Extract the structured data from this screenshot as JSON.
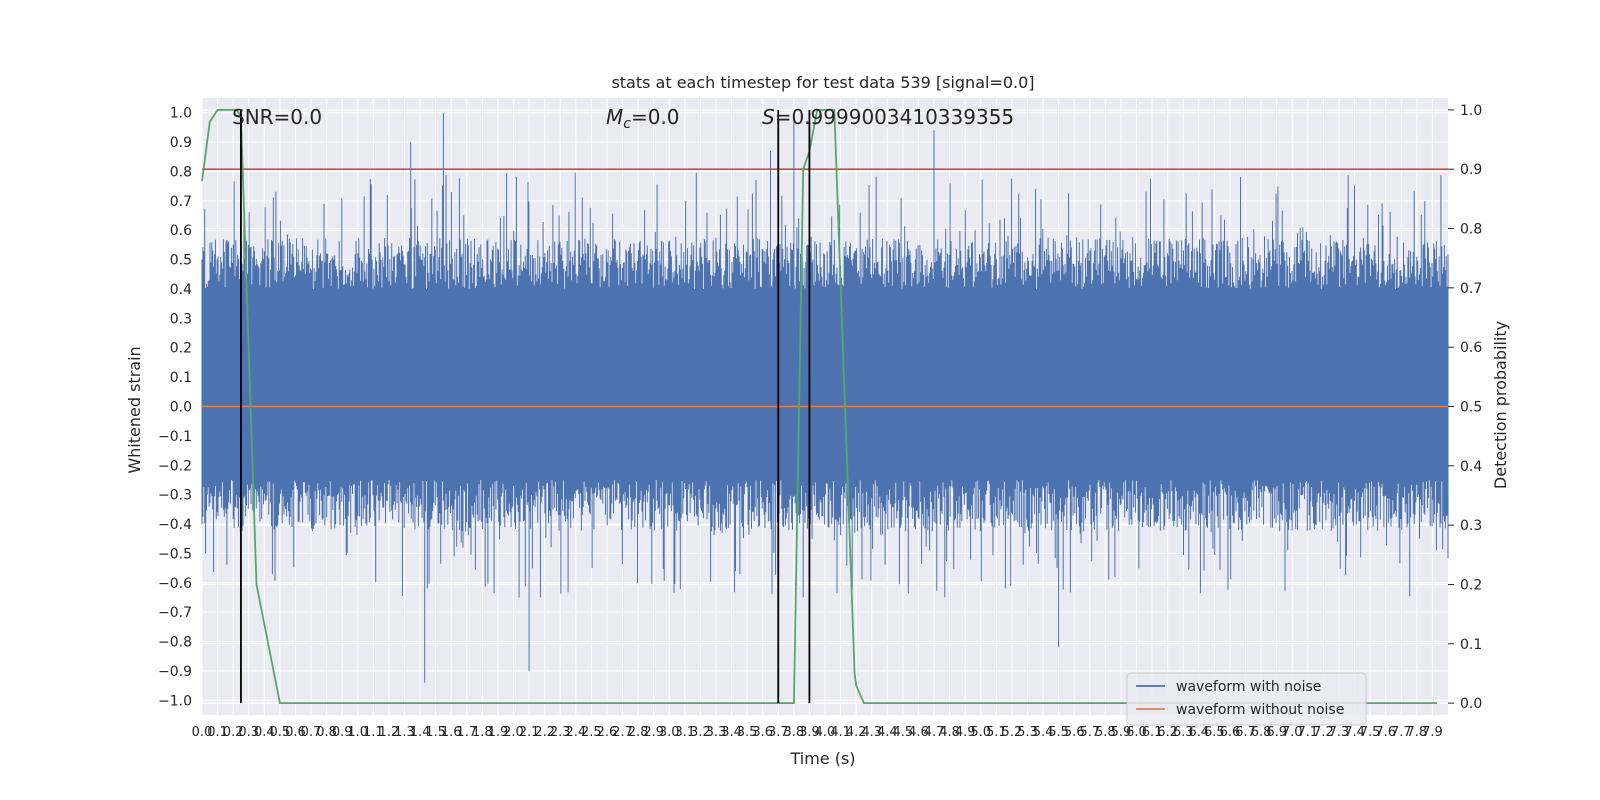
{
  "chart_data": {
    "type": "line",
    "title": "stats at each timestep for test data 539 [signal=0.0]",
    "xlabel": "Time (s)",
    "ylabel": "Whitened strain",
    "y2label": "Detection probability",
    "xlim": [
      0.0,
      8.0
    ],
    "ylim": [
      -1.05,
      1.05
    ],
    "y2lim": [
      -0.02,
      1.02
    ],
    "xticks": [
      0.0,
      0.1,
      0.2,
      0.3,
      0.4,
      0.5,
      0.6,
      0.7,
      0.8,
      0.9,
      1.0,
      1.1,
      1.2,
      1.3,
      1.4,
      1.5,
      1.6,
      1.7,
      1.8,
      1.9,
      2.0,
      2.1,
      2.2,
      2.3,
      2.4,
      2.5,
      2.6,
      2.7,
      2.8,
      2.9,
      3.0,
      3.1,
      3.2,
      3.3,
      3.4,
      3.5,
      3.6,
      3.7,
      3.8,
      3.9,
      4.0,
      4.1,
      4.2,
      4.3,
      4.4,
      4.5,
      4.6,
      4.7,
      4.8,
      4.9,
      5.0,
      5.1,
      5.2,
      5.3,
      5.4,
      5.5,
      5.6,
      5.7,
      5.8,
      5.9,
      6.0,
      6.1,
      6.2,
      6.3,
      6.4,
      6.5,
      6.6,
      6.7,
      6.8,
      6.9,
      7.0,
      7.1,
      7.2,
      7.3,
      7.4,
      7.5,
      7.6,
      7.7,
      7.8,
      7.9
    ],
    "xtick_labels": [
      "0.0",
      "0.1",
      "0.2",
      "0.3",
      "0.4",
      "0.5",
      "0.6",
      "0.7",
      "0.8",
      "0.9",
      "1.0",
      "1.1",
      "1.2",
      "1.3",
      "1.4",
      "1.5",
      "1.6",
      "1.7",
      "1.8",
      "1.9",
      "2.0",
      "2.1",
      "2.2",
      "2.3",
      "2.4",
      "2.5",
      "2.6",
      "2.7",
      "2.8",
      "2.9",
      "3.0",
      "3.1",
      "3.2",
      "3.3",
      "3.4",
      "3.5",
      "3.6",
      "3.7",
      "3.8",
      "3.9",
      "4.0",
      "4.1",
      "4.2",
      "4.3",
      "4.4",
      "4.5",
      "4.6",
      "4.7",
      "4.8",
      "4.9",
      "5.0",
      "5.1",
      "5.2",
      "5.3",
      "5.4",
      "5.5",
      "5.6",
      "5.7",
      "5.8",
      "5.9",
      "6.0",
      "6.1",
      "6.2",
      "6.3",
      "6.4",
      "6.5",
      "6.6",
      "6.7",
      "6.8",
      "6.9",
      "7.0",
      "7.1",
      "7.2",
      "7.3",
      "7.4",
      "7.5",
      "7.6",
      "7.7",
      "7.8",
      "7.9"
    ],
    "yticks": [
      -1.0,
      -0.9,
      -0.8,
      -0.7,
      -0.6,
      -0.5,
      -0.4,
      -0.3,
      -0.2,
      -0.1,
      0.0,
      0.1,
      0.2,
      0.3,
      0.4,
      0.5,
      0.6,
      0.7,
      0.8,
      0.9,
      1.0
    ],
    "ytick_labels": [
      "−1.0",
      "−0.9",
      "−0.8",
      "−0.7",
      "−0.6",
      "−0.5",
      "−0.4",
      "−0.3",
      "−0.2",
      "−0.1",
      "0.0",
      "0.1",
      "0.2",
      "0.3",
      "0.4",
      "0.5",
      "0.6",
      "0.7",
      "0.8",
      "0.9",
      "1.0"
    ],
    "y2ticks": [
      0.0,
      0.1,
      0.2,
      0.3,
      0.4,
      0.5,
      0.6,
      0.7,
      0.8,
      0.9,
      1.0
    ],
    "y2tick_labels": [
      "0.0",
      "0.1",
      "0.2",
      "0.3",
      "0.4",
      "0.5",
      "0.6",
      "0.7",
      "0.8",
      "0.9",
      "1.0"
    ],
    "annotations": [
      {
        "text": "SNR=0.0"
      },
      {
        "text": "M",
        "sub": "c",
        "suffix": "=0.0"
      },
      {
        "text": "S",
        "suffix": "=0.9999003410339355"
      }
    ],
    "legend": {
      "placement": "lower-right",
      "entries": [
        "waveform with noise",
        "waveform without noise"
      ]
    },
    "grid": true,
    "colors": {
      "noise": "#4c72b0",
      "clean": "#dd8452",
      "probability": "#55a868",
      "threshold": "#c44e52",
      "marker": "#000000",
      "panel": "#eaeaf2",
      "grid": "#ffffff"
    },
    "series": [
      {
        "name": "waveform with noise",
        "kind": "noise",
        "x_range": [
          0.0,
          8.0
        ],
        "typical_amplitude": [
          -0.3,
          0.45
        ],
        "peaks": [
          [
            1.55,
            1.0
          ],
          [
            1.34,
            0.9
          ],
          [
            4.7,
            0.94
          ],
          [
            3.8,
            1.0
          ],
          [
            3.65,
            0.87
          ]
        ],
        "troughs": [
          [
            1.43,
            -0.94
          ],
          [
            2.1,
            -0.9
          ],
          [
            5.5,
            -0.82
          ]
        ]
      },
      {
        "name": "waveform without noise",
        "y": 0.0
      },
      {
        "name": "detection probability",
        "x": [
          0.0,
          0.05,
          0.1,
          0.15,
          0.22,
          0.25,
          0.35,
          0.5,
          0.6,
          0.8,
          0.9,
          3.8,
          3.82,
          3.86,
          3.9,
          3.95,
          4.0,
          4.06,
          4.19,
          4.2,
          4.25,
          4.4,
          6.2,
          7.93
        ],
        "y": [
          0.88,
          0.98,
          1.0,
          1.0,
          1.0,
          0.99,
          0.2,
          0.0,
          0.0,
          0.0,
          0.0,
          0.0,
          0.3,
          0.9,
          0.93,
          1.0,
          1.0,
          1.0,
          0.05,
          0.03,
          0.0,
          0.0,
          0.0,
          0.0
        ]
      },
      {
        "name": "threshold",
        "y2": 0.9
      },
      {
        "name": "markers",
        "x": [
          0.25,
          3.7,
          3.9
        ]
      }
    ]
  }
}
